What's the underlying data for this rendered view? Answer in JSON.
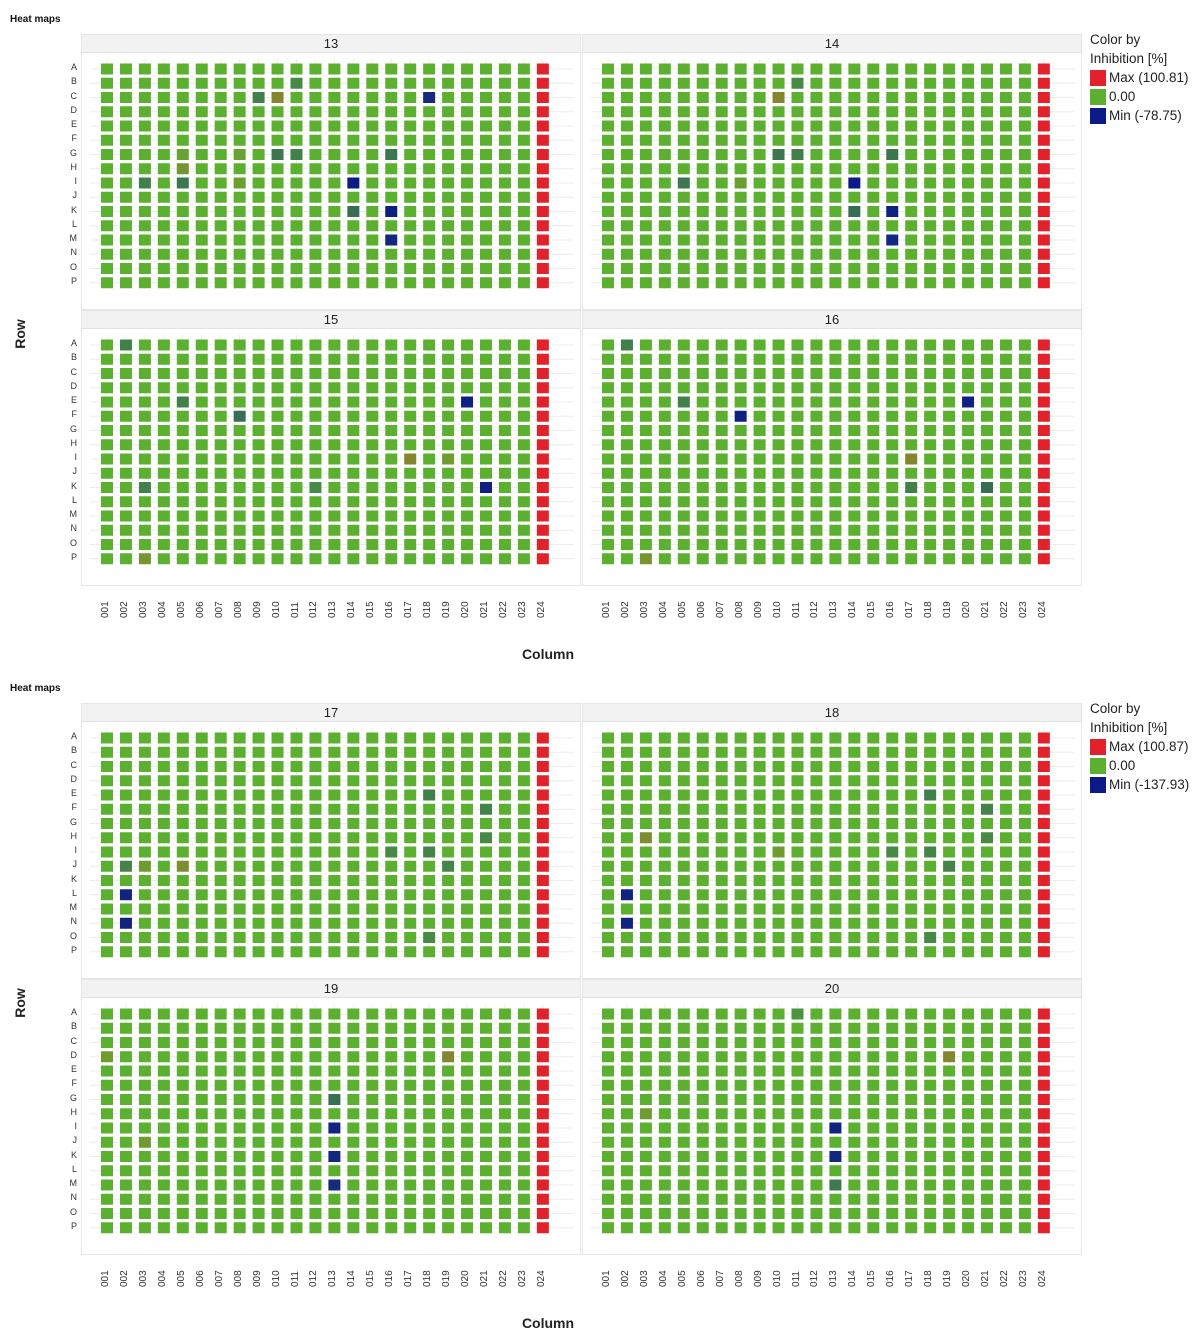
{
  "figures": [
    {
      "title": "Heat maps",
      "ylabel": "Row",
      "xlabel": "Column",
      "legend": {
        "title_line1": "Color by",
        "title_line2": "Inhibition [%]",
        "max_label": "Max (100.81)",
        "zero_label": "0.00",
        "min_label": "Min (-78.75)"
      }
    },
    {
      "title": "Heat maps",
      "ylabel": "Row",
      "xlabel": "Column",
      "legend": {
        "title_line1": "Color by",
        "title_line2": "Inhibition [%]",
        "max_label": "Max (100.87)",
        "zero_label": "0.00",
        "min_label": "Min (-137.93)"
      }
    }
  ],
  "colors": {
    "max": "#e3212b",
    "zero": "#5bb030",
    "min": "#0b1a84"
  },
  "chart_data": [
    {
      "type": "heatmap",
      "title": "Heat maps",
      "xlabel": "Column",
      "ylabel": "Row",
      "rows": [
        "A",
        "B",
        "C",
        "D",
        "E",
        "F",
        "G",
        "H",
        "I",
        "J",
        "K",
        "L",
        "M",
        "N",
        "O",
        "P"
      ],
      "columns": [
        "001",
        "002",
        "003",
        "004",
        "005",
        "006",
        "007",
        "008",
        "009",
        "010",
        "011",
        "012",
        "013",
        "014",
        "015",
        "016",
        "017",
        "018",
        "019",
        "020",
        "021",
        "022",
        "023",
        "024"
      ],
      "color_scale": {
        "max": 100.81,
        "mid": 0.0,
        "min": -78.75
      },
      "panels": [
        {
          "name": "13",
          "default_value": 0,
          "column_values": {
            "024": 100
          },
          "cells": [
            [
              "C",
              "018",
              -70
            ],
            [
              "I",
              "014",
              -78
            ],
            [
              "K",
              "016",
              -75
            ],
            [
              "M",
              "016",
              -72
            ],
            [
              "C",
              "010",
              30
            ],
            [
              "C",
              "009",
              -25
            ],
            [
              "B",
              "011",
              -20
            ],
            [
              "G",
              "010",
              -30
            ],
            [
              "G",
              "011",
              -25
            ],
            [
              "G",
              "016",
              -30
            ],
            [
              "I",
              "003",
              -25
            ],
            [
              "I",
              "005",
              -30
            ],
            [
              "H",
              "005",
              20
            ],
            [
              "K",
              "014",
              -35
            ],
            [
              "I",
              "008",
              12
            ],
            [
              "G",
              "008",
              10
            ],
            [
              "G",
              "005",
              10
            ]
          ]
        },
        {
          "name": "14",
          "default_value": 0,
          "column_values": {
            "024": 100
          },
          "cells": [
            [
              "I",
              "014",
              -78
            ],
            [
              "K",
              "016",
              -75
            ],
            [
              "M",
              "016",
              -72
            ],
            [
              "C",
              "010",
              30
            ],
            [
              "B",
              "011",
              -20
            ],
            [
              "G",
              "010",
              -30
            ],
            [
              "G",
              "011",
              -25
            ],
            [
              "G",
              "016",
              -30
            ],
            [
              "I",
              "005",
              -30
            ],
            [
              "K",
              "014",
              -35
            ],
            [
              "I",
              "008",
              12
            ]
          ]
        },
        {
          "name": "15",
          "default_value": 0,
          "column_values": {
            "024": 100
          },
          "cells": [
            [
              "E",
              "020",
              -75
            ],
            [
              "K",
              "021",
              -75
            ],
            [
              "F",
              "008",
              -35
            ],
            [
              "E",
              "005",
              -25
            ],
            [
              "A",
              "002",
              -25
            ],
            [
              "K",
              "003",
              -25
            ],
            [
              "I",
              "017",
              30
            ],
            [
              "I",
              "019",
              15
            ],
            [
              "P",
              "003",
              20
            ],
            [
              "K",
              "012",
              -20
            ]
          ]
        },
        {
          "name": "16",
          "default_value": 0,
          "column_values": {
            "024": 100
          },
          "cells": [
            [
              "E",
              "020",
              -75
            ],
            [
              "F",
              "008",
              -75
            ],
            [
              "K",
              "021",
              -35
            ],
            [
              "E",
              "005",
              -25
            ],
            [
              "A",
              "002",
              -25
            ],
            [
              "I",
              "017",
              30
            ],
            [
              "P",
              "003",
              20
            ],
            [
              "K",
              "017",
              -25
            ]
          ]
        }
      ]
    },
    {
      "type": "heatmap",
      "title": "Heat maps",
      "xlabel": "Column",
      "ylabel": "Row",
      "rows": [
        "A",
        "B",
        "C",
        "D",
        "E",
        "F",
        "G",
        "H",
        "I",
        "J",
        "K",
        "L",
        "M",
        "N",
        "O",
        "P"
      ],
      "columns": [
        "001",
        "002",
        "003",
        "004",
        "005",
        "006",
        "007",
        "008",
        "009",
        "010",
        "011",
        "012",
        "013",
        "014",
        "015",
        "016",
        "017",
        "018",
        "019",
        "020",
        "021",
        "022",
        "023",
        "024"
      ],
      "color_scale": {
        "max": 100.87,
        "mid": 0.0,
        "min": -137.93
      },
      "panels": [
        {
          "name": "17",
          "default_value": 0,
          "column_values": {
            "024": 100
          },
          "cells": [
            [
              "L",
              "002",
              -130
            ],
            [
              "N",
              "002",
              -130
            ],
            [
              "E",
              "018",
              -45
            ],
            [
              "F",
              "021",
              -40
            ],
            [
              "H",
              "021",
              -35
            ],
            [
              "I",
              "016",
              -35
            ],
            [
              "I",
              "018",
              -40
            ],
            [
              "J",
              "019",
              -40
            ],
            [
              "J",
              "002",
              -40
            ],
            [
              "O",
              "018",
              -35
            ],
            [
              "J",
              "005",
              25
            ],
            [
              "J",
              "003",
              15
            ]
          ]
        },
        {
          "name": "18",
          "default_value": 0,
          "column_values": {
            "024": 100
          },
          "cells": [
            [
              "L",
              "002",
              -130
            ],
            [
              "N",
              "002",
              -130
            ],
            [
              "E",
              "018",
              -45
            ],
            [
              "F",
              "021",
              -40
            ],
            [
              "H",
              "021",
              -35
            ],
            [
              "I",
              "016",
              -35
            ],
            [
              "I",
              "018",
              -40
            ],
            [
              "J",
              "019",
              -40
            ],
            [
              "H",
              "003",
              25
            ],
            [
              "O",
              "018",
              -35
            ],
            [
              "I",
              "010",
              15
            ]
          ]
        },
        {
          "name": "19",
          "default_value": 0,
          "column_values": {
            "024": 100
          },
          "cells": [
            [
              "I",
              "013",
              -130
            ],
            [
              "K",
              "013",
              -125
            ],
            [
              "M",
              "013",
              -120
            ],
            [
              "G",
              "013",
              -60
            ],
            [
              "D",
              "019",
              30
            ],
            [
              "D",
              "001",
              15
            ],
            [
              "J",
              "003",
              15
            ]
          ]
        },
        {
          "name": "20",
          "default_value": 0,
          "column_values": {
            "024": 100
          },
          "cells": [
            [
              "I",
              "013",
              -130
            ],
            [
              "K",
              "013",
              -125
            ],
            [
              "M",
              "013",
              -50
            ],
            [
              "D",
              "019",
              30
            ],
            [
              "A",
              "011",
              -25
            ],
            [
              "H",
              "003",
              15
            ]
          ]
        }
      ]
    }
  ]
}
